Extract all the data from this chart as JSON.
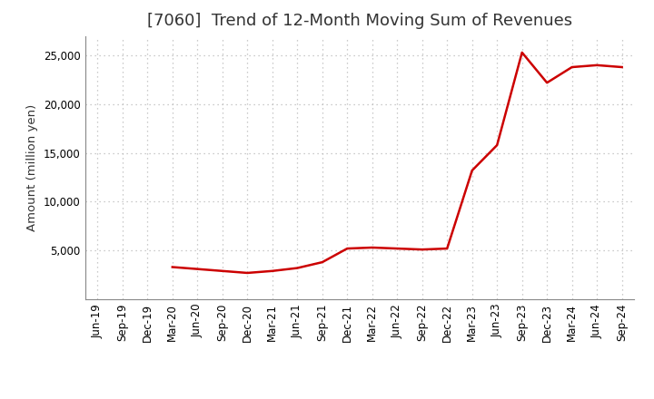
{
  "title": "[7060]  Trend of 12-Month Moving Sum of Revenues",
  "ylabel": "Amount (million yen)",
  "line_color": "#cc0000",
  "background_color": "#ffffff",
  "plot_bg_color": "#ffffff",
  "grid_color": "#bbbbbb",
  "ylim": [
    0,
    27000
  ],
  "yticks": [
    5000,
    10000,
    15000,
    20000,
    25000
  ],
  "x_labels": [
    "Jun-19",
    "Sep-19",
    "Dec-19",
    "Mar-20",
    "Jun-20",
    "Sep-20",
    "Dec-20",
    "Mar-21",
    "Jun-21",
    "Sep-21",
    "Dec-21",
    "Mar-22",
    "Jun-22",
    "Sep-22",
    "Dec-22",
    "Mar-23",
    "Jun-23",
    "Sep-23",
    "Dec-23",
    "Mar-24",
    "Jun-24",
    "Sep-24"
  ],
  "x_values": [
    0,
    1,
    2,
    3,
    4,
    5,
    6,
    7,
    8,
    9,
    10,
    11,
    12,
    13,
    14,
    15,
    16,
    17,
    18,
    19,
    20,
    21
  ],
  "y_values": [
    null,
    null,
    null,
    3300,
    3100,
    2900,
    2700,
    2900,
    3200,
    3800,
    5200,
    5300,
    5200,
    5100,
    5200,
    13200,
    15800,
    25300,
    22200,
    23800,
    24000,
    23800
  ],
  "title_fontsize": 13,
  "tick_fontsize": 8.5,
  "ylabel_fontsize": 9.5,
  "line_width": 1.8
}
